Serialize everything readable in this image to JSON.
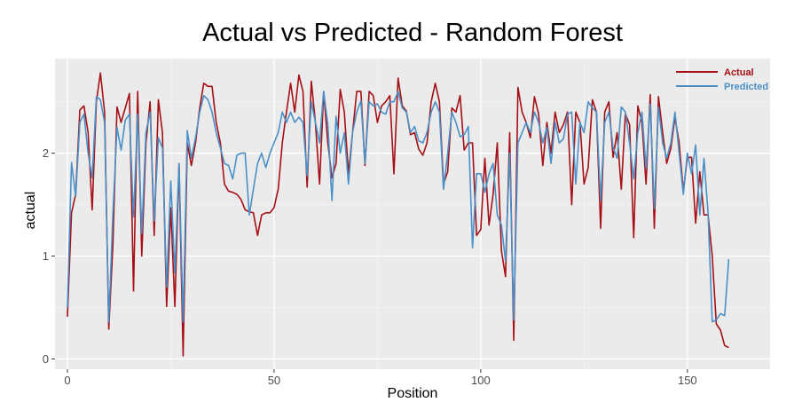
{
  "chart_data": {
    "type": "line",
    "title": "Actual vs Predicted - Random Forest",
    "xlabel": "Position",
    "ylabel": "actual",
    "xlim": [
      -3,
      170
    ],
    "ylim": [
      -0.1,
      2.92
    ],
    "x_ticks": [
      0,
      50,
      100,
      150
    ],
    "y_ticks": [
      0,
      1,
      2
    ],
    "x_tick_labels": [
      "0",
      "50",
      "100",
      "150"
    ],
    "y_tick_labels": [
      "0",
      "1",
      "2"
    ],
    "grid": true,
    "legend_position": "top-right",
    "series": [
      {
        "name": "Actual",
        "color": "#a50f15",
        "values": [
          0.41,
          1.42,
          1.6,
          2.42,
          2.46,
          2.2,
          1.45,
          2.5,
          2.78,
          2.4,
          0.29,
          1.1,
          2.45,
          2.3,
          2.44,
          2.58,
          0.66,
          2.6,
          1.0,
          2.1,
          2.5,
          1.2,
          2.52,
          2.2,
          0.51,
          1.47,
          0.51,
          1.9,
          0.03,
          2.1,
          1.88,
          2.1,
          2.44,
          2.68,
          2.65,
          2.65,
          2.3,
          2.1,
          1.7,
          1.63,
          1.62,
          1.6,
          1.55,
          1.45,
          1.43,
          1.42,
          1.2,
          1.4,
          1.42,
          1.42,
          1.47,
          1.65,
          2.1,
          2.4,
          2.68,
          2.4,
          2.76,
          2.6,
          1.67,
          2.7,
          2.3,
          1.7,
          2.6,
          2.1,
          1.76,
          1.9,
          2.62,
          2.4,
          1.8,
          2.2,
          2.6,
          2.6,
          1.88,
          2.6,
          2.56,
          2.3,
          2.46,
          2.5,
          2.56,
          1.8,
          2.73,
          2.46,
          2.41,
          2.18,
          2.2,
          2.04,
          1.98,
          2.1,
          2.5,
          2.68,
          2.5,
          1.7,
          1.82,
          2.44,
          2.4,
          2.56,
          2.03,
          2.1,
          2.1,
          1.2,
          1.26,
          1.95,
          1.3,
          1.6,
          2.1,
          1.05,
          0.8,
          2.2,
          0.18,
          2.64,
          2.4,
          2.3,
          2.15,
          2.55,
          2.38,
          1.88,
          2.3,
          2.0,
          2.4,
          2.2,
          2.28,
          2.4,
          1.5,
          2.4,
          2.3,
          1.7,
          1.86,
          2.52,
          2.4,
          1.27,
          2.4,
          2.5,
          1.96,
          2.2,
          1.65,
          2.38,
          2.28,
          1.18,
          2.46,
          2.3,
          1.7,
          2.57,
          1.27,
          2.55,
          2.2,
          1.9,
          2.05,
          2.35,
          2.1,
          1.63,
          1.96,
          1.96,
          1.32,
          1.82,
          1.4,
          1.4,
          1.0,
          0.34,
          0.28,
          0.13,
          0.11
        ],
        "x_start": 0,
        "x_step": 1
      },
      {
        "name": "Predicted",
        "color": "#4a90c8",
        "values": [
          0.5,
          1.91,
          1.58,
          2.3,
          2.38,
          2.0,
          1.76,
          2.55,
          2.52,
          2.3,
          0.36,
          1.4,
          2.25,
          2.03,
          2.32,
          2.38,
          1.38,
          2.38,
          1.22,
          2.2,
          2.4,
          1.34,
          2.15,
          2.05,
          0.7,
          1.73,
          0.84,
          1.9,
          0.36,
          2.22,
          1.95,
          2.15,
          2.4,
          2.56,
          2.52,
          2.4,
          2.2,
          2.05,
          1.9,
          1.88,
          1.75,
          1.98,
          2.0,
          2.0,
          1.4,
          1.65,
          1.9,
          2.0,
          1.86,
          2.0,
          2.1,
          2.2,
          2.4,
          2.3,
          2.4,
          2.3,
          2.35,
          2.3,
          1.78,
          2.5,
          2.3,
          2.1,
          2.6,
          2.28,
          1.54,
          2.36,
          2.0,
          2.2,
          1.7,
          2.2,
          2.4,
          2.51,
          1.9,
          2.5,
          2.46,
          2.48,
          2.4,
          2.38,
          2.5,
          2.5,
          2.6,
          2.44,
          2.4,
          2.2,
          2.26,
          2.12,
          2.1,
          2.2,
          2.4,
          2.5,
          2.4,
          1.65,
          2.0,
          2.4,
          2.3,
          2.16,
          2.18,
          2.26,
          1.08,
          1.8,
          1.8,
          1.62,
          1.8,
          1.9,
          1.4,
          1.3,
          0.95,
          2.0,
          0.38,
          2.1,
          2.2,
          2.3,
          2.2,
          2.4,
          2.3,
          2.1,
          2.25,
          1.9,
          2.3,
          2.1,
          2.14,
          2.38,
          2.4,
          1.7,
          2.3,
          2.2,
          2.5,
          2.44,
          2.4,
          1.54,
          2.3,
          2.4,
          2.06,
          1.95,
          2.45,
          2.4,
          2.1,
          1.75,
          2.2,
          2.4,
          1.85,
          2.48,
          1.46,
          2.45,
          2.1,
          1.95,
          2.1,
          2.4,
          2.0,
          1.6,
          2.0,
          1.8,
          2.08,
          1.4,
          1.95,
          1.42,
          0.36,
          0.38,
          0.44,
          0.42,
          0.97
        ],
        "x_start": 0,
        "x_step": 1
      }
    ]
  }
}
